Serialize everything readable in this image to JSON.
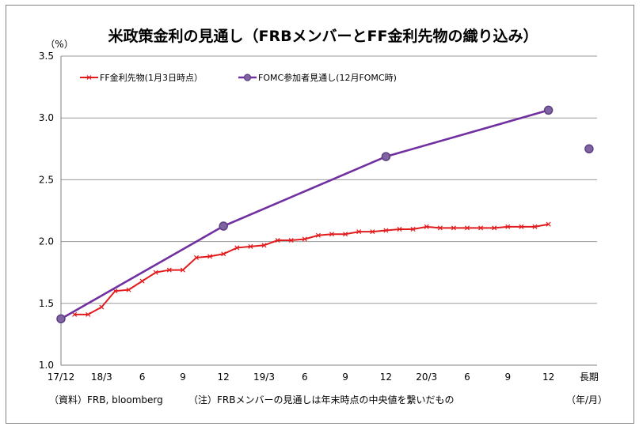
{
  "chart_data": {
    "type": "line",
    "title": "米政策金利の見通し（FRBメンバーとFF金利先物の織り込み）",
    "y_unit_label": "（%）",
    "x_unit_label": "（年/月）",
    "ylim": [
      1.0,
      3.5
    ],
    "yticks": [
      "1.0",
      "1.5",
      "2.0",
      "2.5",
      "3.0",
      "3.5"
    ],
    "xticks": [
      {
        "i": 0,
        "label": "17/12"
      },
      {
        "i": 3,
        "label": "18/3"
      },
      {
        "i": 6,
        "label": "6"
      },
      {
        "i": 9,
        "label": "9"
      },
      {
        "i": 12,
        "label": "12"
      },
      {
        "i": 15,
        "label": "19/3"
      },
      {
        "i": 18,
        "label": "6"
      },
      {
        "i": 21,
        "label": "9"
      },
      {
        "i": 24,
        "label": "12"
      },
      {
        "i": 27,
        "label": "20/3"
      },
      {
        "i": 30,
        "label": "6"
      },
      {
        "i": 33,
        "label": "9"
      },
      {
        "i": 36,
        "label": "12"
      },
      {
        "i": 39,
        "label": "長期"
      }
    ],
    "grid": true,
    "legend_position": "top-left",
    "series": [
      {
        "name": "FF金利先物(1月3日時点）",
        "color": "#e31a1c",
        "marker": "x",
        "x": [
          1,
          2,
          3,
          4,
          5,
          6,
          7,
          8,
          9,
          10,
          11,
          12,
          13,
          14,
          15,
          16,
          17,
          18,
          19,
          20,
          21,
          22,
          23,
          24,
          25,
          26,
          27,
          28,
          29,
          30,
          31,
          32,
          33,
          34,
          35,
          36
        ],
        "values": [
          1.41,
          1.41,
          1.47,
          1.6,
          1.61,
          1.68,
          1.75,
          1.77,
          1.77,
          1.87,
          1.88,
          1.9,
          1.95,
          1.96,
          1.97,
          2.01,
          2.01,
          2.02,
          2.05,
          2.06,
          2.06,
          2.08,
          2.08,
          2.09,
          2.1,
          2.1,
          2.12,
          2.11,
          2.11,
          2.11,
          2.11,
          2.11,
          2.12,
          2.12,
          2.12,
          2.14
        ]
      },
      {
        "name": "FOMC参加者見通し(12月FOMC時)",
        "color": "#7030a0",
        "marker": "circle",
        "x": [
          0,
          12,
          24,
          36
        ],
        "values": [
          1.375,
          2.125,
          2.6875,
          3.0625
        ],
        "long_run": {
          "x": 39,
          "value": 2.75
        }
      }
    ]
  },
  "footer": {
    "source": "（資料）FRB, bloomberg",
    "note": "（注）FRBメンバーの見通しは年末時点の中央値を繋いだもの"
  }
}
